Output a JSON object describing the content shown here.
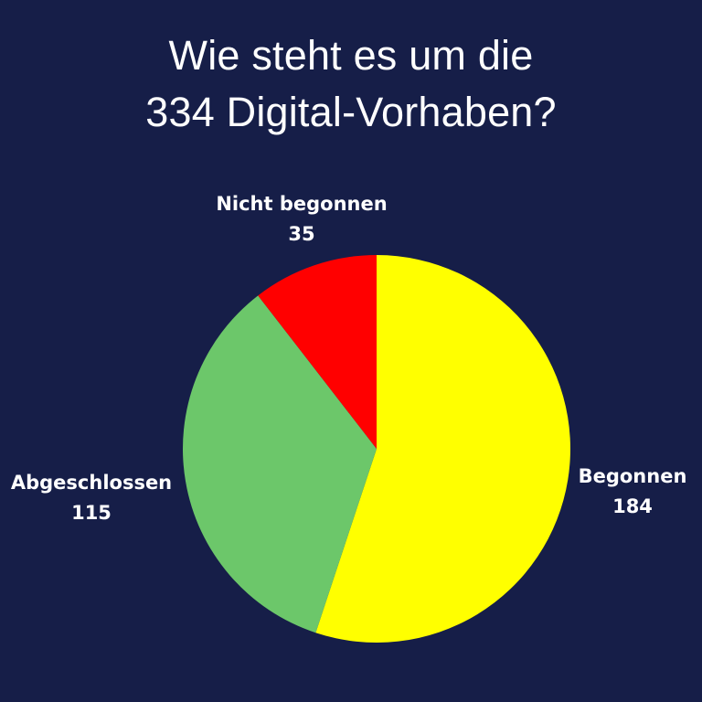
{
  "title": {
    "line1": "Wie steht es um die",
    "line2": "334 Digital-Vorhaben?"
  },
  "chart_data": {
    "type": "pie",
    "title": "Wie steht es um die 334 Digital-Vorhaben?",
    "total": 334,
    "slices": [
      {
        "label": "Begonnen",
        "value": 184,
        "color": "#ffff00"
      },
      {
        "label": "Abgeschlossen",
        "value": 115,
        "color": "#6cc76a"
      },
      {
        "label": "Nicht begonnen",
        "value": 35,
        "color": "#ff0000"
      }
    ],
    "start": "12 o'clock",
    "direction": "clockwise"
  },
  "colors": {
    "background": "#161e48",
    "text": "#ffffff"
  }
}
